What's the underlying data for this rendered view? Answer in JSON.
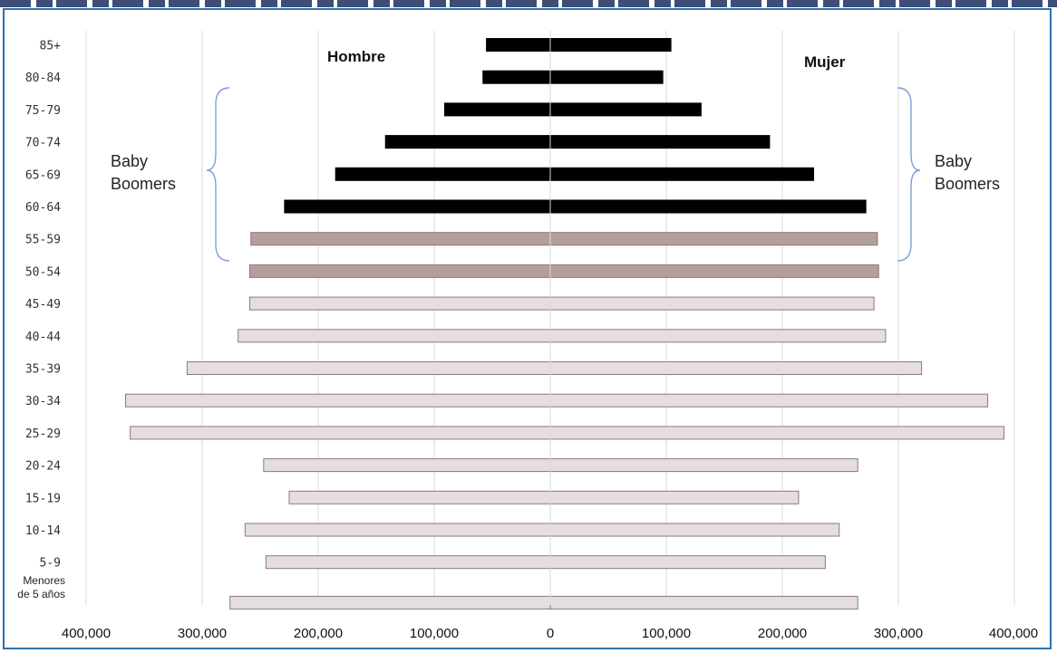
{
  "chart_data": {
    "type": "bar",
    "orientation": "horizontal",
    "subtype": "population-pyramid",
    "categories": [
      "85+",
      "80-84",
      "75-79",
      "70-74",
      "65-69",
      "60-64",
      "55-59",
      "50-54",
      "45-49",
      "40-44",
      "35-39",
      "30-34",
      "25-29",
      "20-24",
      "15-19",
      "10-14",
      "5-9",
      "Menores de 5 años"
    ],
    "series": [
      {
        "name": "Hombre",
        "side": "left",
        "values": [
          55000,
          58000,
          91000,
          142000,
          185000,
          229000,
          258000,
          259000,
          259000,
          269000,
          313000,
          366000,
          362000,
          247000,
          225000,
          263000,
          245000,
          276000
        ]
      },
      {
        "name": "Mujer",
        "side": "right",
        "values": [
          104000,
          97000,
          130000,
          189000,
          227000,
          272000,
          282000,
          283000,
          279000,
          289000,
          320000,
          377000,
          391000,
          265000,
          214000,
          249000,
          237000,
          265000
        ]
      }
    ],
    "bar_colors": [
      "#000000",
      "#000000",
      "#000000",
      "#000000",
      "#000000",
      "#000000",
      "#b49f9f",
      "#b49f9f",
      "#e6dede",
      "#e6dede",
      "#e6dede",
      "#e6dede",
      "#e6dede",
      "#e6dede",
      "#e6dede",
      "#e6dede",
      "#e6dede",
      "#e6dede"
    ],
    "xlim": [
      -400000,
      400000
    ],
    "tick_values": [
      -400000,
      -300000,
      -200000,
      -100000,
      0,
      100000,
      200000,
      300000,
      400000
    ],
    "tick_labels": [
      "400,000",
      "300,000",
      "200,000",
      "100,000",
      "0",
      "100,000",
      "200,000",
      "300,000",
      "400,000"
    ],
    "grid": true,
    "annotations": [
      {
        "text_line1": "Baby",
        "text_line2": "Boomers",
        "side": "left",
        "from_category": "75-79",
        "to_category": "55-59"
      },
      {
        "text_line1": "Baby",
        "text_line2": "Boomers",
        "side": "right",
        "from_category": "75-79",
        "to_category": "55-59"
      }
    ]
  },
  "colors": {
    "frame": "#2f6fad",
    "bracket": "#7f9fd9",
    "grid": "#d9d9d9",
    "bar_outline": "#8a7a7a"
  }
}
